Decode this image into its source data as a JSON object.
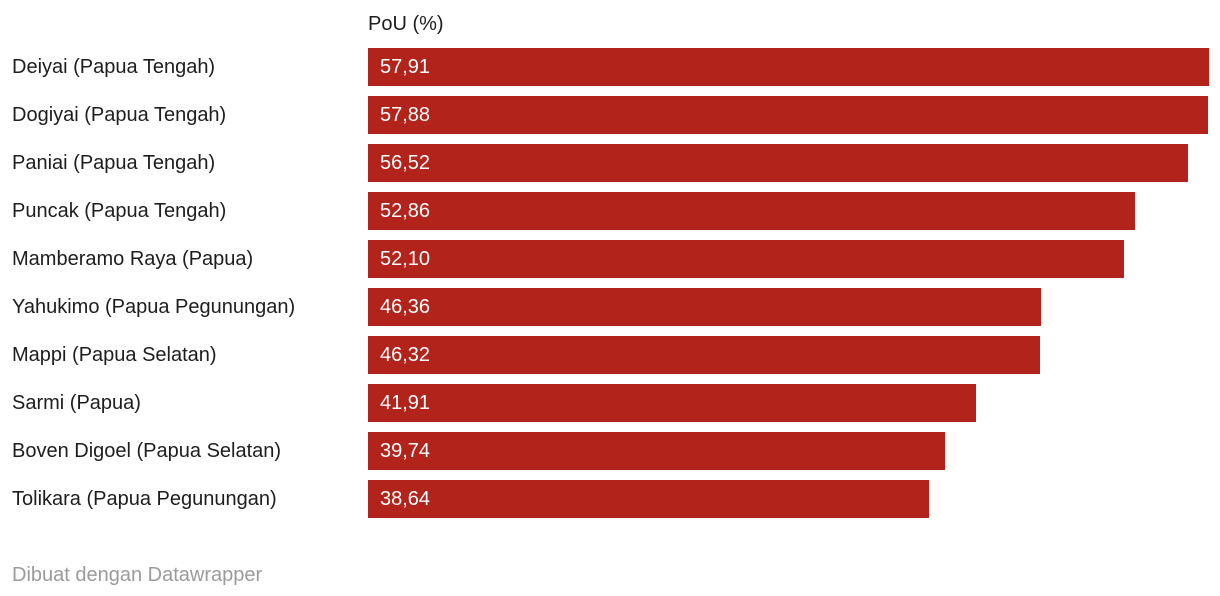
{
  "chart": {
    "axis_title": "PoU (%)",
    "bar_color": "#b2231b",
    "label_color": "#1d1d1d",
    "value_color": "#ffffff",
    "footer_color": "#9b9b9b"
  },
  "chart_data": {
    "type": "bar",
    "orientation": "horizontal",
    "title": "",
    "axis_title": "PoU (%)",
    "categories": [
      "Deiyai (Papua Tengah)",
      "Dogiyai (Papua Tengah)",
      "Paniai (Papua Tengah)",
      "Puncak (Papua Tengah)",
      "Mamberamo Raya (Papua)",
      "Yahukimo (Papua Pegunungan)",
      "Mappi (Papua Selatan)",
      "Sarmi (Papua)",
      "Boven Digoel (Papua Selatan)",
      "Tolikara (Papua Pegunungan)"
    ],
    "values": [
      57.91,
      57.88,
      56.52,
      52.86,
      52.1,
      46.36,
      46.32,
      41.91,
      39.74,
      38.64
    ],
    "value_labels": [
      "57,91",
      "57,88",
      "56,52",
      "52,86",
      "52,10",
      "46,36",
      "46,32",
      "41,91",
      "39,74",
      "38,64"
    ],
    "xlim": [
      0,
      58.7
    ],
    "grid": false,
    "legend": "none",
    "bar_color": "#b2231b"
  },
  "footer": {
    "attribution": "Dibuat dengan Datawrapper"
  }
}
